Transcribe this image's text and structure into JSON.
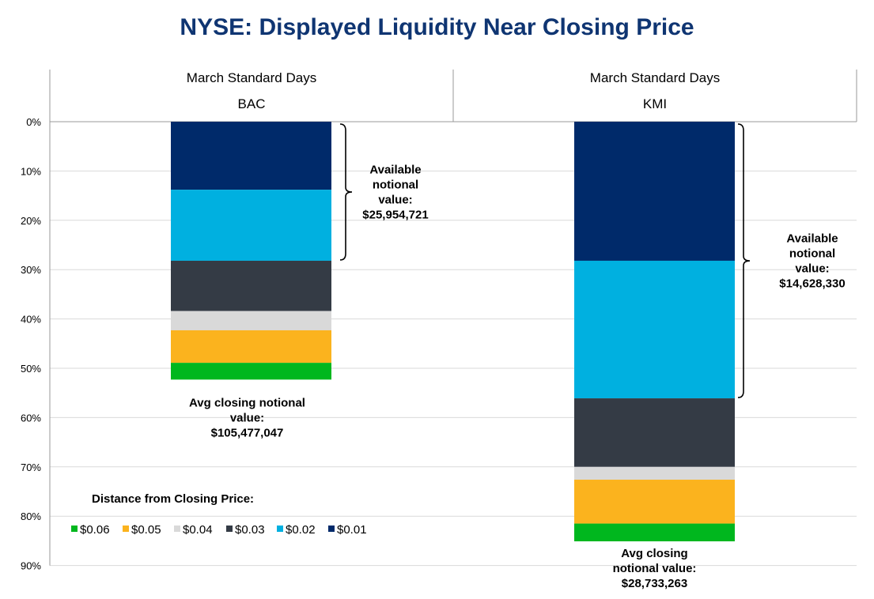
{
  "title": "NYSE: Displayed Liquidity Near Closing Price",
  "colors": {
    "title": "#0f3572",
    "grid": "#d9d9d9",
    "axis": "#999999"
  },
  "legend": {
    "title": "Distance from Closing Price:",
    "placement": "bottom-left"
  },
  "chart_data": {
    "type": "bar",
    "stacked": true,
    "orientation": "vertical-downward",
    "y_ticks": [
      "0%",
      "10%",
      "20%",
      "30%",
      "40%",
      "50%",
      "60%",
      "70%",
      "80%",
      "90%"
    ],
    "ylim": [
      0,
      90
    ],
    "grid": true,
    "categories": [
      {
        "period": "March Standard Days",
        "ticker": "BAC"
      },
      {
        "period": "March Standard Days",
        "ticker": "KMI"
      }
    ],
    "series": [
      {
        "name": "$0.01",
        "color": "#002a6a",
        "values": [
          13.8,
          28.2
        ]
      },
      {
        "name": "$0.02",
        "color": "#00b0e0",
        "values": [
          14.4,
          27.9
        ]
      },
      {
        "name": "$0.03",
        "color": "#343b45",
        "values": [
          10.2,
          13.9
        ]
      },
      {
        "name": "$0.04",
        "color": "#d9d9d9",
        "values": [
          3.9,
          2.6
        ]
      },
      {
        "name": "$0.05",
        "color": "#fbb31e",
        "values": [
          6.6,
          8.9
        ]
      },
      {
        "name": "$0.06",
        "color": "#00b71e",
        "values": [
          3.4,
          3.6
        ]
      }
    ],
    "legend_order": [
      "$0.06",
      "$0.05",
      "$0.04",
      "$0.03",
      "$0.02",
      "$0.01"
    ],
    "annotations": [
      {
        "bar": 0,
        "brace_range": [
          0,
          28.2
        ],
        "lines": [
          "Available",
          "notional",
          "value:",
          "$25,954,721"
        ]
      },
      {
        "bar": 1,
        "brace_range": [
          0,
          56.1
        ],
        "lines": [
          "Available",
          "notional",
          "value:",
          "$14,628,330"
        ]
      }
    ],
    "footnotes": [
      {
        "bar": 0,
        "lines": [
          "Avg closing notional",
          "value:",
          "$105,477,047"
        ]
      },
      {
        "bar": 1,
        "lines": [
          "Avg closing",
          "notional value:",
          "$28,733,263"
        ]
      }
    ]
  }
}
